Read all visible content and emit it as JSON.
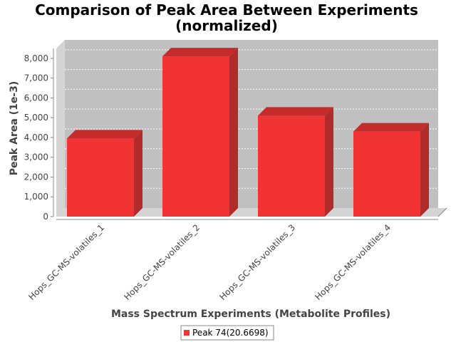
{
  "chart_data": {
    "type": "bar",
    "title_line1": "Comparison of Peak Area Between Experiments",
    "title_line2": "(normalized)",
    "xlabel": "Mass Spectrum Experiments (Metabolite Profiles)",
    "ylabel": "Peak Area (1e-3)",
    "categories": [
      "Hops_GC-MS-volatiles_1",
      "Hops_GC-MS-volatiles_2",
      "Hops_GC-MS-volatiles_3",
      "Hops_GC-MS-volatiles_4"
    ],
    "series": [
      {
        "name": "Peak 74(20.6698)",
        "values": [
          3950,
          8100,
          5100,
          4300
        ]
      }
    ],
    "ylim": [
      0,
      8500
    ],
    "yticks": [
      0,
      1000,
      2000,
      3000,
      4000,
      5000,
      6000,
      7000,
      8000
    ],
    "ytick_labels": [
      "0",
      "1,000",
      "2,000",
      "3,000",
      "4,000",
      "5,000",
      "6,000",
      "7,000",
      "8,000"
    ],
    "grid": true,
    "legend_position": "bottom",
    "colors": {
      "bar_front": "#f23333",
      "bar_side": "#b22b2b",
      "bar_top": "#c42b2b",
      "plot_back": "#c0c0c0",
      "plot_wall": "#d4d4d4",
      "grid": "#ffffff"
    }
  }
}
